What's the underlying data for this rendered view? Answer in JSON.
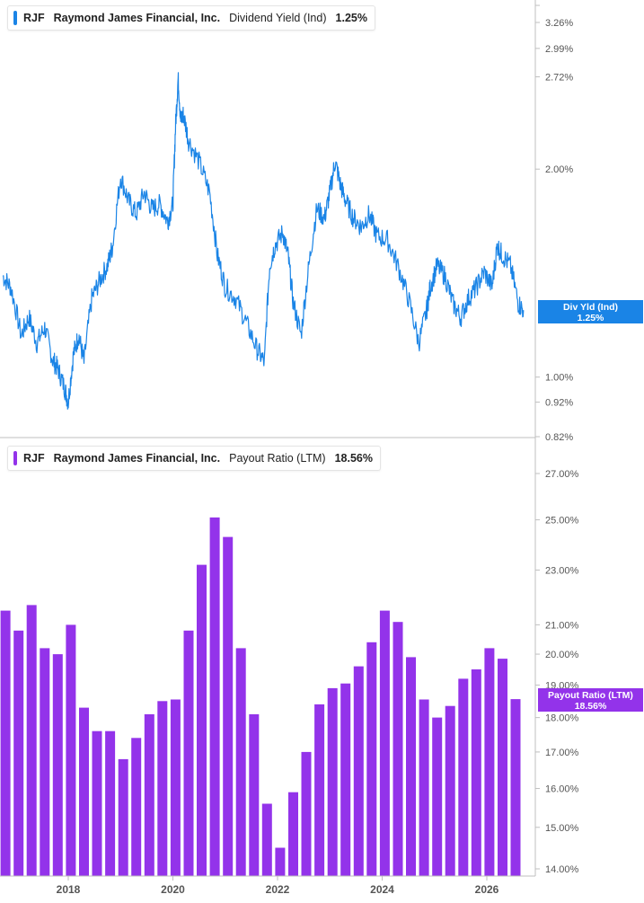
{
  "colors": {
    "yield": "#1a84e6",
    "payout": "#9333ea",
    "axis": "#bfbfbf",
    "tick_text": "#555555"
  },
  "top_panel": {
    "legend": {
      "ticker": "RJF",
      "company": "Raymond James Financial, Inc.",
      "metric": "Dividend Yield (Ind)",
      "value": "1.25%"
    },
    "badge": {
      "line1": "Div Yld (Ind)",
      "line2": "1.25%"
    }
  },
  "bottom_panel": {
    "legend": {
      "ticker": "RJF",
      "company": "Raymond James Financial, Inc.",
      "metric": "Payout Ratio (LTM)",
      "value": "18.56%"
    },
    "badge": {
      "line1": "Payout Ratio (LTM)",
      "line2": "18.56%"
    }
  },
  "chart_data": [
    {
      "type": "line",
      "series": [
        {
          "name": "Dividend Yield (Ind)",
          "x": [
            2016.75,
            2016.9,
            2017.1,
            2017.25,
            2017.4,
            2017.55,
            2017.7,
            2017.8,
            2017.92,
            2018.0,
            2018.1,
            2018.2,
            2018.3,
            2018.45,
            2018.6,
            2018.75,
            2018.85,
            2019.0,
            2019.15,
            2019.3,
            2019.45,
            2019.6,
            2019.75,
            2019.9,
            2020.0,
            2020.05,
            2020.1,
            2020.15,
            2020.2,
            2020.3,
            2020.5,
            2020.7,
            2020.85,
            2021.0,
            2021.2,
            2021.4,
            2021.6,
            2021.75,
            2021.85,
            2021.95,
            2022.1,
            2022.2,
            2022.3,
            2022.45,
            2022.6,
            2022.75,
            2022.9,
            2023.0,
            2023.1,
            2023.2,
            2023.3,
            2023.45,
            2023.6,
            2023.75,
            2023.9,
            2024.1,
            2024.3,
            2024.5,
            2024.7,
            2024.85,
            2024.92,
            2025.05,
            2025.2,
            2025.35,
            2025.5,
            2025.65,
            2025.8,
            2025.95,
            2026.1,
            2026.2,
            2026.3,
            2026.45,
            2026.6,
            2026.7
          ],
          "y": [
            1.4,
            1.35,
            1.15,
            1.22,
            1.12,
            1.18,
            1.06,
            1.03,
            0.97,
            0.92,
            1.08,
            1.15,
            1.05,
            1.3,
            1.38,
            1.45,
            1.55,
            1.95,
            1.8,
            1.72,
            1.85,
            1.75,
            1.78,
            1.68,
            1.78,
            2.3,
            2.7,
            2.35,
            2.4,
            2.2,
            2.05,
            1.85,
            1.5,
            1.35,
            1.3,
            1.2,
            1.1,
            1.05,
            1.45,
            1.55,
            1.62,
            1.5,
            1.28,
            1.15,
            1.45,
            1.75,
            1.7,
            1.85,
            2.05,
            1.9,
            1.8,
            1.7,
            1.65,
            1.72,
            1.6,
            1.58,
            1.45,
            1.3,
            1.12,
            1.25,
            1.35,
            1.45,
            1.4,
            1.28,
            1.22,
            1.3,
            1.35,
            1.42,
            1.35,
            1.55,
            1.5,
            1.45,
            1.28,
            1.25
          ]
        }
      ],
      "xlim": [
        2016.0,
        2027.0
      ],
      "ylim": [
        0.82,
        3.26
      ],
      "y_scale": "log",
      "y_ticks": [
        0.82,
        0.92,
        1.0,
        2.0,
        2.72,
        2.99,
        3.26
      ],
      "y_tick_labels": [
        "0.82%",
        "0.92%",
        "1.00%",
        "2.00%",
        "2.72%",
        "2.99%",
        "3.26%"
      ],
      "grid": false,
      "legend": "top-left"
    },
    {
      "type": "bar",
      "series": [
        {
          "name": "Payout Ratio (LTM)",
          "x": [
            2016.8,
            2017.05,
            2017.3,
            2017.55,
            2017.8,
            2018.05,
            2018.3,
            2018.55,
            2018.8,
            2019.05,
            2019.3,
            2019.55,
            2019.8,
            2020.05,
            2020.3,
            2020.55,
            2020.8,
            2021.05,
            2021.3,
            2021.55,
            2021.8,
            2022.05,
            2022.3,
            2022.55,
            2022.8,
            2023.05,
            2023.3,
            2023.55,
            2023.8,
            2024.05,
            2024.3,
            2024.55,
            2024.8,
            2025.05,
            2025.3,
            2025.55,
            2025.8,
            2026.05,
            2026.3,
            2026.55
          ],
          "values": [
            21.5,
            20.8,
            21.7,
            20.2,
            20.0,
            21.0,
            18.3,
            17.6,
            17.6,
            16.8,
            17.4,
            18.1,
            18.5,
            18.55,
            20.8,
            23.2,
            25.1,
            24.3,
            20.2,
            18.1,
            15.6,
            14.5,
            15.9,
            17.0,
            18.4,
            18.9,
            19.05,
            19.6,
            20.4,
            21.5,
            21.1,
            19.9,
            18.55,
            18.0,
            18.35,
            19.2,
            19.5,
            20.2,
            19.85,
            18.56
          ]
        }
      ],
      "xlim": [
        2016.0,
        2027.0
      ],
      "ylim": [
        14.0,
        27.0
      ],
      "y_scale": "log",
      "y_ticks": [
        14.0,
        15.0,
        16.0,
        17.0,
        18.0,
        19.0,
        20.0,
        21.0,
        23.0,
        25.0,
        27.0
      ],
      "y_tick_labels": [
        "14.00%",
        "15.00%",
        "16.00%",
        "17.00%",
        "18.00%",
        "19.00%",
        "20.00%",
        "21.00%",
        "23.00%",
        "25.00%",
        "27.00%"
      ],
      "x_ticks": [
        2018,
        2020,
        2022,
        2024,
        2026
      ],
      "x_tick_labels": [
        "2018",
        "2020",
        "2022",
        "2024",
        "2026"
      ],
      "grid": false,
      "legend": "top-left"
    }
  ]
}
